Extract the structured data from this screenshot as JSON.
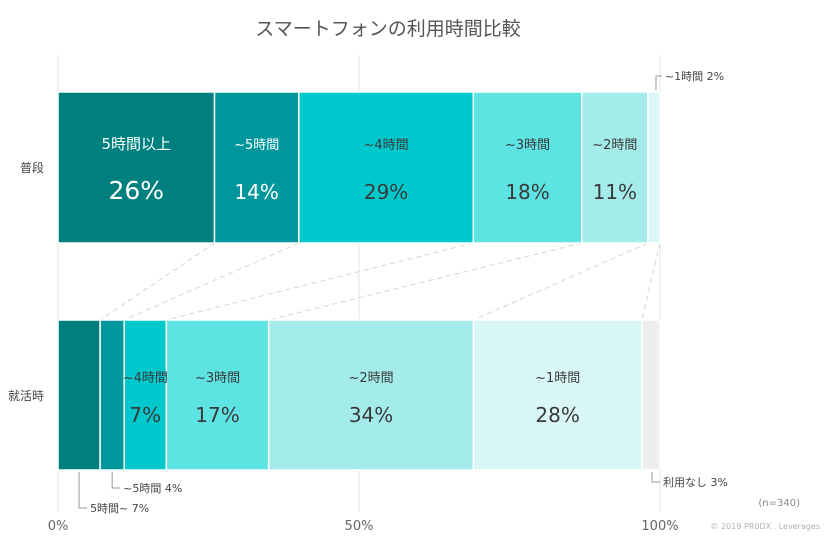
{
  "chart_data": {
    "type": "bar",
    "orientation": "horizontal",
    "stacked": true,
    "title": "スマートフォンの利用時間比較",
    "xlim": [
      0,
      100
    ],
    "x_ticks": [
      "0%",
      "50%",
      "100%"
    ],
    "grid": true,
    "legend": "none",
    "categories": [
      "普段",
      "就活時"
    ],
    "series": [
      {
        "name": "5時間以上",
        "values": [
          26,
          7
        ],
        "color": "#007f7f",
        "in_bar_labels": [
          "5時間以上",
          ""
        ],
        "callouts": [
          "",
          "5時間~ 7%"
        ]
      },
      {
        "name": "~5時間",
        "values": [
          14,
          4
        ],
        "color": "#00979c",
        "in_bar_labels": [
          "~5時間",
          ""
        ],
        "callouts": [
          "",
          "~5時間 4%"
        ]
      },
      {
        "name": "~4時間",
        "values": [
          29,
          7
        ],
        "color": "#00c9cd",
        "in_bar_labels": [
          "~4時間",
          "~4時間"
        ],
        "callouts": [
          "",
          ""
        ]
      },
      {
        "name": "~3時間",
        "values": [
          18,
          17
        ],
        "color": "#5ee3e3",
        "in_bar_labels": [
          "~3時間",
          "~3時間"
        ],
        "callouts": [
          "",
          ""
        ]
      },
      {
        "name": "~2時間",
        "values": [
          11,
          34
        ],
        "color": "#a3ecea",
        "in_bar_labels": [
          "~2時間",
          "~2時間"
        ],
        "callouts": [
          "",
          ""
        ]
      },
      {
        "name": "~1時間",
        "values": [
          2,
          28
        ],
        "color": "#d9f7f7",
        "in_bar_labels": [
          "",
          "~1時間"
        ],
        "callouts": [
          "~1時間 2%",
          ""
        ]
      },
      {
        "name": "利用なし",
        "values": [
          0,
          3
        ],
        "color": "#eeeeee",
        "in_bar_labels": [
          "",
          ""
        ],
        "callouts": [
          "",
          "利用なし 3%"
        ]
      }
    ],
    "value_labels": [
      [
        "26%",
        "14%",
        "29%",
        "18%",
        "11%",
        "",
        ""
      ],
      [
        "",
        "",
        "7%",
        "17%",
        "34%",
        "28%",
        ""
      ]
    ]
  },
  "note": "(n=340)",
  "copyright": "© 2019 PR0DX . Leverages"
}
